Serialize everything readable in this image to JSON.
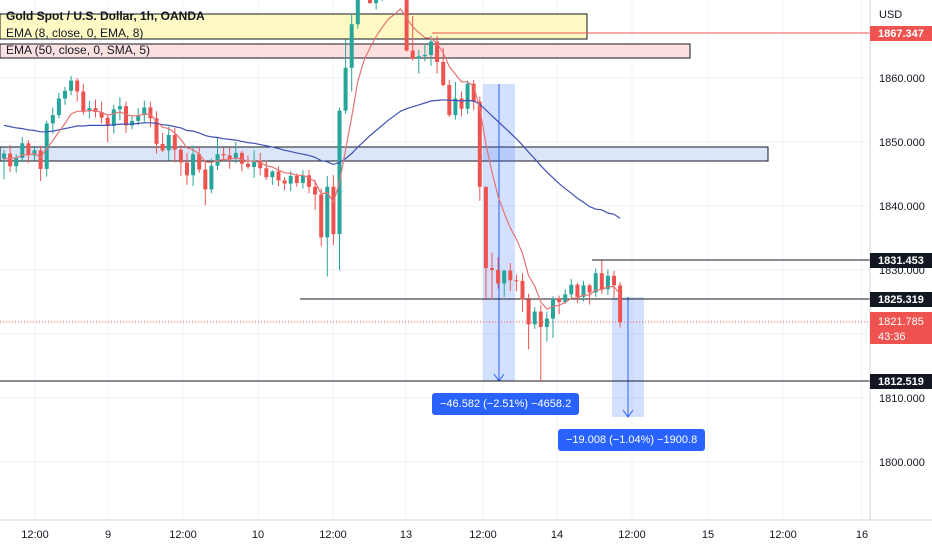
{
  "header": {
    "symbol": "Gold Spot / U.S. Dollar, 1h, OANDA",
    "indicator_1": "EMA (8, close, 0, EMA, 8)",
    "indicator_2": "EMA (50, close, 0, SMA, 5)"
  },
  "price_axis": {
    "currency": "USD",
    "ticks": [
      "1860.000",
      "1850.000",
      "1840.000",
      "1830.000",
      "1810.000",
      "1800.000"
    ]
  },
  "time_axis": {
    "ticks": [
      "12:00",
      "9",
      "12:00",
      "10",
      "12:00",
      "13",
      "12:00",
      "14",
      "12:00",
      "15",
      "12:00",
      "16"
    ]
  },
  "price_tags": {
    "top_level": "1867.347",
    "level_a": "1831.453",
    "level_b": "1825.319",
    "current": "1821.785",
    "countdown": "43:36",
    "level_c": "1812.519"
  },
  "measurements": {
    "first": "−46.582 (−2.51%) −4658.2",
    "second": "−19.008 (−1.04%) −1900.8"
  },
  "colors": {
    "bull": "#26a69a",
    "bear": "#ef5350",
    "ema_fast": "#e57373",
    "ema_slow": "#3f51b5",
    "accent": "#2962ff"
  },
  "chart_data": {
    "type": "candlestick",
    "symbol": "Gold Spot / U.S. Dollar",
    "timeframe": "1h",
    "ylim": [
      1795,
      1875
    ],
    "candles": [
      [
        1847.4,
        1848.2,
        1844.2,
        1848.8
      ],
      [
        1848.2,
        1846.2,
        1845.3,
        1849.5
      ],
      [
        1846.2,
        1847.5,
        1845.2,
        1848.1
      ],
      [
        1847.5,
        1849.8,
        1846.9,
        1850.8
      ],
      [
        1849.8,
        1847.9,
        1846.7,
        1850.3
      ],
      [
        1847.9,
        1848.7,
        1847.1,
        1849.4
      ],
      [
        1848.7,
        1845.8,
        1843.9,
        1849.4
      ],
      [
        1845.8,
        1852.9,
        1844.6,
        1853.3
      ],
      [
        1852.9,
        1854.2,
        1851.3,
        1855.4
      ],
      [
        1854.2,
        1856.8,
        1853.7,
        1857.7
      ],
      [
        1856.8,
        1858.0,
        1855.8,
        1858.6
      ],
      [
        1858.0,
        1859.6,
        1857.3,
        1860.3
      ],
      [
        1859.6,
        1857.9,
        1856.3,
        1860.0
      ],
      [
        1857.9,
        1854.8,
        1854.3,
        1859.1
      ],
      [
        1854.8,
        1855.3,
        1853.7,
        1856.4
      ],
      [
        1855.3,
        1854.7,
        1853.8,
        1856.6
      ],
      [
        1854.7,
        1853.8,
        1852.9,
        1856.3
      ],
      [
        1853.8,
        1852.5,
        1850.0,
        1854.3
      ],
      [
        1852.5,
        1855.1,
        1851.3,
        1855.8
      ],
      [
        1855.1,
        1855.6,
        1853.4,
        1857.0
      ],
      [
        1855.6,
        1852.6,
        1851.4,
        1856.3
      ],
      [
        1852.6,
        1853.3,
        1852.0,
        1854.1
      ],
      [
        1853.3,
        1854.2,
        1852.6,
        1855.3
      ],
      [
        1854.2,
        1855.4,
        1853.0,
        1856.5
      ],
      [
        1855.4,
        1853.7,
        1852.3,
        1856.3
      ],
      [
        1853.7,
        1849.7,
        1848.2,
        1854.8
      ],
      [
        1849.7,
        1848.7,
        1848.4,
        1851.4
      ],
      [
        1848.7,
        1851.1,
        1847.1,
        1852.4
      ],
      [
        1851.1,
        1848.8,
        1846.8,
        1852.2
      ],
      [
        1848.8,
        1846.8,
        1844.7,
        1849.5
      ],
      [
        1846.8,
        1844.8,
        1843.3,
        1848.3
      ],
      [
        1844.8,
        1848.1,
        1843.1,
        1849.4
      ],
      [
        1848.1,
        1845.7,
        1845.2,
        1849.2
      ],
      [
        1845.7,
        1842.6,
        1840.1,
        1847.2
      ],
      [
        1842.6,
        1846.3,
        1842.0,
        1847.4
      ],
      [
        1846.3,
        1848.1,
        1845.6,
        1850.7
      ],
      [
        1848.1,
        1847.9,
        1847.0,
        1849.1
      ],
      [
        1847.9,
        1847.4,
        1845.8,
        1849.2
      ],
      [
        1847.4,
        1848.3,
        1846.7,
        1850.0
      ],
      [
        1848.3,
        1846.6,
        1845.4,
        1848.6
      ],
      [
        1846.6,
        1846.1,
        1845.8,
        1847.9
      ],
      [
        1846.1,
        1847.1,
        1844.4,
        1848.7
      ],
      [
        1847.1,
        1845.9,
        1844.8,
        1848.3
      ],
      [
        1845.9,
        1844.5,
        1844.1,
        1847.1
      ],
      [
        1844.5,
        1845.4,
        1843.3,
        1845.6
      ],
      [
        1845.4,
        1844.0,
        1843.1,
        1846.2
      ],
      [
        1844.0,
        1843.5,
        1842.5,
        1844.5
      ],
      [
        1843.5,
        1844.7,
        1842.3,
        1845.5
      ],
      [
        1844.7,
        1843.6,
        1843.0,
        1845.1
      ],
      [
        1843.6,
        1844.8,
        1842.7,
        1845.6
      ],
      [
        1844.8,
        1843.0,
        1842.0,
        1845.6
      ],
      [
        1843.0,
        1841.8,
        1839.4,
        1844.1
      ],
      [
        1841.8,
        1835.1,
        1833.7,
        1842.7
      ],
      [
        1835.1,
        1843.0,
        1829.0,
        1844.7
      ],
      [
        1843.0,
        1835.6,
        1833.9,
        1844.8
      ],
      [
        1835.6,
        1854.9,
        1830.0,
        1855.4
      ],
      [
        1854.9,
        1861.6,
        1854.4,
        1866.0
      ],
      [
        1861.6,
        1868.4,
        1857.9,
        1870.1
      ],
      [
        1868.4,
        1876.6,
        1867.7,
        1876.0
      ],
      [
        1876.6,
        1874.0,
        1872.4,
        1876.8
      ],
      [
        1874.0,
        1871.7,
        1871.6,
        1874.9
      ],
      [
        1871.7,
        1873.0,
        1870.7,
        1873.4
      ],
      [
        1873.0,
        1873.6,
        1872.0,
        1873.9
      ],
      [
        1873.6,
        1874.0,
        1872.5,
        1874.6
      ],
      [
        1874.0,
        1873.2,
        1872.6,
        1874.4
      ],
      [
        1873.2,
        1874.5,
        1872.6,
        1874.8
      ],
      [
        1874.5,
        1864.3,
        1864.1,
        1876.0
      ],
      [
        1864.3,
        1863.0,
        1862.7,
        1869.7
      ],
      [
        1863.0,
        1863.4,
        1860.7,
        1864.4
      ],
      [
        1863.4,
        1863.6,
        1862.6,
        1865.4
      ],
      [
        1863.6,
        1865.7,
        1861.9,
        1866.6
      ],
      [
        1865.7,
        1862.5,
        1860.7,
        1866.6
      ],
      [
        1862.5,
        1858.9,
        1858.7,
        1864.7
      ],
      [
        1858.9,
        1854.2,
        1853.9,
        1859.7
      ],
      [
        1854.2,
        1856.8,
        1853.5,
        1859.4
      ],
      [
        1856.8,
        1855.2,
        1854.0,
        1857.9
      ],
      [
        1855.2,
        1859.1,
        1854.4,
        1859.6
      ],
      [
        1859.1,
        1856.3,
        1855.0,
        1859.7
      ],
      [
        1856.3,
        1843.0,
        1840.8,
        1857.1
      ],
      [
        1843.0,
        1830.3,
        1825.3,
        1843.0
      ],
      [
        1830.3,
        1830.0,
        1825.4,
        1832.7
      ],
      [
        1830.0,
        1827.9,
        1827.1,
        1832.0
      ],
      [
        1827.9,
        1829.9,
        1825.8,
        1830.0
      ],
      [
        1829.9,
        1828.4,
        1826.7,
        1831.1
      ],
      [
        1828.4,
        1828.3,
        1826.7,
        1829.3
      ],
      [
        1828.3,
        1825.4,
        1823.4,
        1829.5
      ],
      [
        1825.4,
        1821.5,
        1817.6,
        1826.3
      ],
      [
        1821.5,
        1823.5,
        1820.8,
        1824.2
      ],
      [
        1823.5,
        1821.1,
        1812.5,
        1824.5
      ],
      [
        1821.1,
        1822.4,
        1818.8,
        1823.5
      ],
      [
        1822.4,
        1825.5,
        1819.4,
        1825.9
      ],
      [
        1825.5,
        1825.0,
        1823.1,
        1826.0
      ],
      [
        1825.0,
        1826.2,
        1824.7,
        1827.0
      ],
      [
        1826.2,
        1827.7,
        1825.6,
        1828.6
      ],
      [
        1827.7,
        1825.8,
        1824.8,
        1828.0
      ],
      [
        1825.8,
        1827.6,
        1825.1,
        1828.3
      ],
      [
        1827.6,
        1826.5,
        1824.6,
        1827.8
      ],
      [
        1826.5,
        1829.5,
        1825.8,
        1830.2
      ],
      [
        1829.5,
        1827.0,
        1826.3,
        1831.5
      ],
      [
        1827.0,
        1829.1,
        1826.1,
        1830.1
      ],
      [
        1829.1,
        1827.6,
        1825.7,
        1829.9
      ],
      [
        1827.6,
        1821.8,
        1821.0,
        1828.1
      ]
    ],
    "ema_fast": [
      1847.3,
      1847.5,
      1847.5,
      1848.0,
      1848.0,
      1848.2,
      1847.6,
      1849.0,
      1850.2,
      1851.6,
      1852.9,
      1854.4,
      1854.8,
      1854.8,
      1854.9,
      1854.9,
      1854.6,
      1854.2,
      1854.4,
      1854.7,
      1854.3,
      1854.1,
      1854.1,
      1854.4,
      1854.3,
      1853.3,
      1852.3,
      1852.1,
      1851.4,
      1850.4,
      1849.1,
      1848.8,
      1848.1,
      1846.9,
      1846.8,
      1847.1,
      1847.3,
      1847.3,
      1847.5,
      1847.3,
      1847.0,
      1847.0,
      1846.8,
      1846.3,
      1846.1,
      1845.6,
      1845.2,
      1845.1,
      1844.8,
      1844.8,
      1844.4,
      1843.8,
      1841.9,
      1842.1,
      1840.6,
      1843.7,
      1848.8,
      1853.9,
      1859.5,
      1862.7,
      1864.7,
      1866.5,
      1867.9,
      1869.2,
      1869.9,
      1870.8,
      1869.4,
      1868.0,
      1867.1,
      1866.3,
      1866.2,
      1865.4,
      1863.9,
      1861.8,
      1860.6,
      1859.4,
      1859.4,
      1858.7,
      1855.3,
      1849.7,
      1845.3,
      1841.5,
      1838.9,
      1836.6,
      1834.8,
      1832.6,
      1829.1,
      1827.5,
      1825.0,
      1823.9,
      1824.3,
      1824.5,
      1824.9,
      1825.6,
      1825.6,
      1826.1,
      1826.1,
      1826.9,
      1826.9,
      1827.4,
      1827.4,
      1826.2
    ],
    "ema_slow": [
      1852.6,
      1852.4,
      1852.2,
      1852.1,
      1851.9,
      1851.8,
      1851.6,
      1851.6,
      1851.7,
      1851.9,
      1852.1,
      1852.3,
      1852.5,
      1852.5,
      1852.6,
      1852.6,
      1852.6,
      1852.6,
      1852.7,
      1852.8,
      1852.8,
      1852.8,
      1852.9,
      1853.0,
      1853.0,
      1852.9,
      1852.7,
      1852.6,
      1852.4,
      1852.2,
      1851.8,
      1851.7,
      1851.4,
      1851.0,
      1850.8,
      1850.7,
      1850.5,
      1850.4,
      1850.3,
      1850.1,
      1849.9,
      1849.8,
      1849.6,
      1849.4,
      1849.2,
      1849.0,
      1848.7,
      1848.5,
      1848.3,
      1848.1,
      1847.9,
      1847.6,
      1847.1,
      1846.9,
      1846.5,
      1846.8,
      1847.4,
      1848.2,
      1849.2,
      1850.1,
      1851.0,
      1851.8,
      1852.6,
      1853.4,
      1854.1,
      1854.8,
      1855.2,
      1855.5,
      1855.8,
      1856.1,
      1856.4,
      1856.5,
      1856.6,
      1856.5,
      1856.5,
      1856.4,
      1856.5,
      1856.4,
      1855.9,
      1855.0,
      1854.1,
      1853.2,
      1852.3,
      1851.4,
      1850.5,
      1849.5,
      1848.4,
      1847.4,
      1846.3,
      1845.3,
      1844.4,
      1843.5,
      1842.7,
      1842.0,
      1841.2,
      1840.6,
      1839.9,
      1839.5,
      1839.4,
      1838.9,
      1838.7,
      1838.1
    ],
    "levels": [
      1867.347,
      1831.453,
      1825.319,
      1812.519
    ],
    "current_price": 1821.785,
    "zones": [
      {
        "type": "supply",
        "from": 1873.5,
        "to": 1869.8
      },
      {
        "type": "supply",
        "from": 1866.4,
        "to": 1864.3
      },
      {
        "type": "demand",
        "from": 1849.3,
        "to": 1847.2
      }
    ],
    "measures": [
      {
        "from": 1859.101,
        "to": 1812.519,
        "change": -46.582,
        "percent": -2.51,
        "ticks": -4658.2
      },
      {
        "from": 1825.319,
        "to": 1806.311,
        "change": -19.008,
        "percent": -1.04,
        "ticks": -1900.8
      }
    ]
  }
}
